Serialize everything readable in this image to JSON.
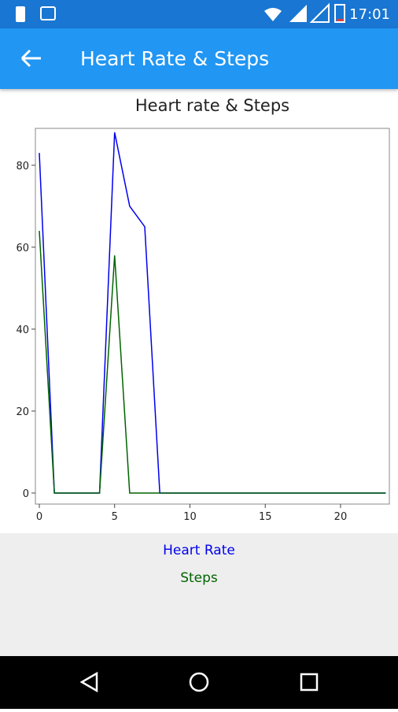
{
  "status_bar": {
    "time": "17:01"
  },
  "app_bar": {
    "title": "Heart Rate & Steps"
  },
  "chart_data": {
    "type": "line",
    "title": "Heart rate & Steps",
    "x": [
      0,
      1,
      2,
      3,
      4,
      5,
      6,
      7,
      8,
      9,
      10,
      11,
      12,
      13,
      14,
      15,
      16,
      17,
      18,
      19,
      20,
      21,
      22,
      23
    ],
    "series": [
      {
        "name": "Heart Rate",
        "color": "#0000ee",
        "values": [
          83,
          0,
          0,
          0,
          0,
          88,
          70,
          65,
          0,
          0,
          0,
          0,
          0,
          0,
          0,
          0,
          0,
          0,
          0,
          0,
          0,
          0,
          0,
          0
        ]
      },
      {
        "name": "Steps",
        "color": "#006400",
        "values": [
          64,
          0,
          0,
          0,
          0,
          58,
          0,
          0,
          0,
          0,
          0,
          0,
          0,
          0,
          0,
          0,
          0,
          0,
          0,
          0,
          0,
          0,
          0,
          0
        ]
      }
    ],
    "xlim": [
      -0.26,
      23.24
    ],
    "ylim": [
      -2.7,
      89
    ],
    "xticks": [
      0,
      5,
      10,
      15,
      20
    ],
    "yticks": [
      0,
      20,
      40,
      60,
      80
    ]
  }
}
